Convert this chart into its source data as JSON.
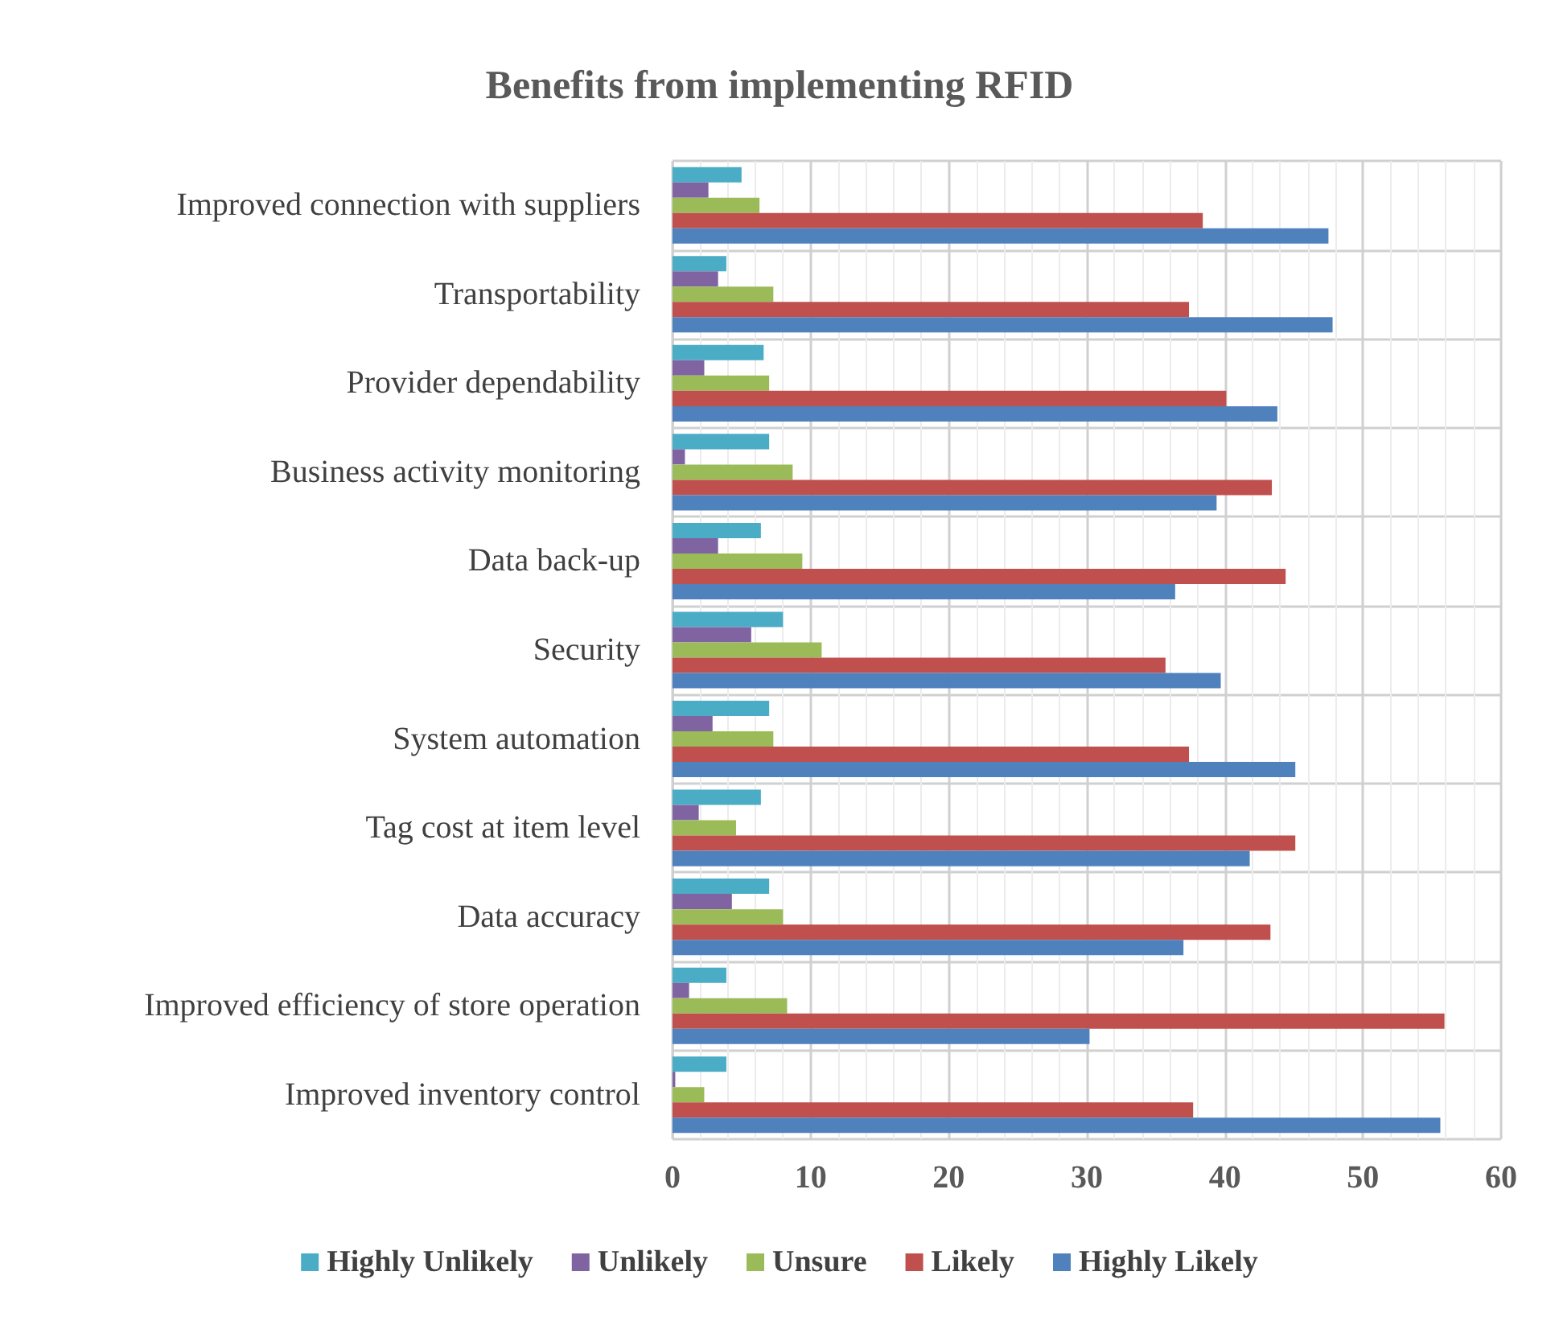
{
  "chart_data": {
    "type": "bar",
    "orientation": "horizontal",
    "title": "Benefits from implementing RFID",
    "categories": [
      "Improved connection with suppliers",
      "Transportability",
      "Provider dependability",
      "Business activity monitoring",
      "Data back-up",
      "Security",
      "System automation",
      "Tag cost at item level",
      "Data accuracy",
      "Improved efficiency of store operation",
      "Improved inventory control"
    ],
    "series": [
      {
        "name": "Highly Unlikely",
        "color": "#4bacc6",
        "values": [
          5.0,
          3.9,
          6.6,
          7.0,
          6.4,
          8.0,
          7.0,
          6.4,
          7.0,
          3.9,
          3.9
        ]
      },
      {
        "name": "Unlikely",
        "color": "#8064a2",
        "values": [
          2.6,
          3.3,
          2.3,
          0.9,
          3.3,
          5.7,
          2.9,
          1.9,
          4.3,
          1.2,
          0.2
        ]
      },
      {
        "name": "Unsure",
        "color": "#9bbb59",
        "values": [
          6.3,
          7.3,
          7.0,
          8.7,
          9.4,
          10.8,
          7.3,
          4.6,
          8.0,
          8.3,
          2.3
        ]
      },
      {
        "name": "Likely",
        "color": "#c0504d",
        "values": [
          38.4,
          37.4,
          40.1,
          43.4,
          44.4,
          35.7,
          37.4,
          45.1,
          43.3,
          55.9,
          37.7
        ]
      },
      {
        "name": "Highly Likely",
        "color": "#4f81bd",
        "values": [
          47.5,
          47.8,
          43.8,
          39.4,
          36.4,
          39.7,
          45.1,
          41.8,
          37.0,
          30.2,
          55.6
        ]
      }
    ],
    "xlim": [
      0,
      60
    ],
    "xticks": [
      0,
      10,
      20,
      30,
      40,
      50,
      60
    ],
    "grid": true,
    "legend": "bottom"
  }
}
